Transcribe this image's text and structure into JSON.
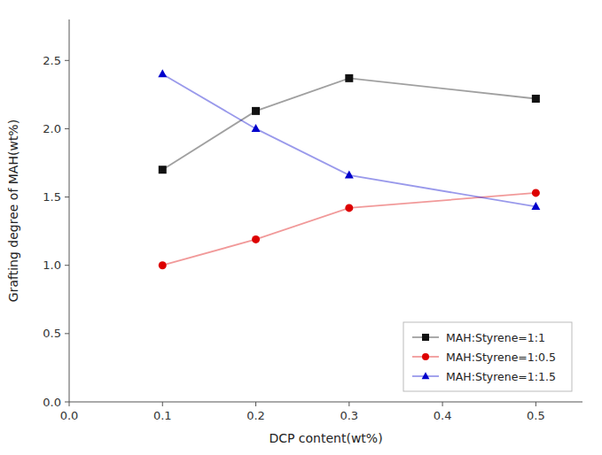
{
  "chart_data": {
    "type": "line",
    "xlabel": "DCP content(wt%)",
    "ylabel": "Grafting degree of MAH(wt%)",
    "x": [
      0.1,
      0.2,
      0.3,
      0.5
    ],
    "series": [
      {
        "name": "MAH:Styrene=1:1",
        "color": "#111111",
        "marker": "square",
        "values": [
          1.7,
          2.13,
          2.37,
          2.22
        ]
      },
      {
        "name": "MAH:Styrene=1:0.5",
        "color": "#dd0000",
        "marker": "circle",
        "values": [
          1.0,
          1.19,
          1.42,
          1.53
        ]
      },
      {
        "name": "MAH:Styrene=1:1.5",
        "color": "#0000cc",
        "marker": "triangle",
        "values": [
          2.4,
          2.0,
          1.66,
          1.43
        ]
      }
    ],
    "xlim": [
      0.0,
      0.55
    ],
    "ylim": [
      0.0,
      2.8
    ],
    "xticks": [
      {
        "value": 0.0,
        "label": "0.0"
      },
      0.1,
      0.2,
      0.3,
      0.4,
      0.5
    ],
    "yticks": [
      {
        "value": 0.0,
        "label": "0.0"
      },
      0.5,
      {
        "value": 1.0,
        "label": "1.0"
      },
      1.5,
      {
        "value": 2.0,
        "label": "2.0"
      },
      2.5
    ],
    "grid": false,
    "legend": "lower right"
  }
}
